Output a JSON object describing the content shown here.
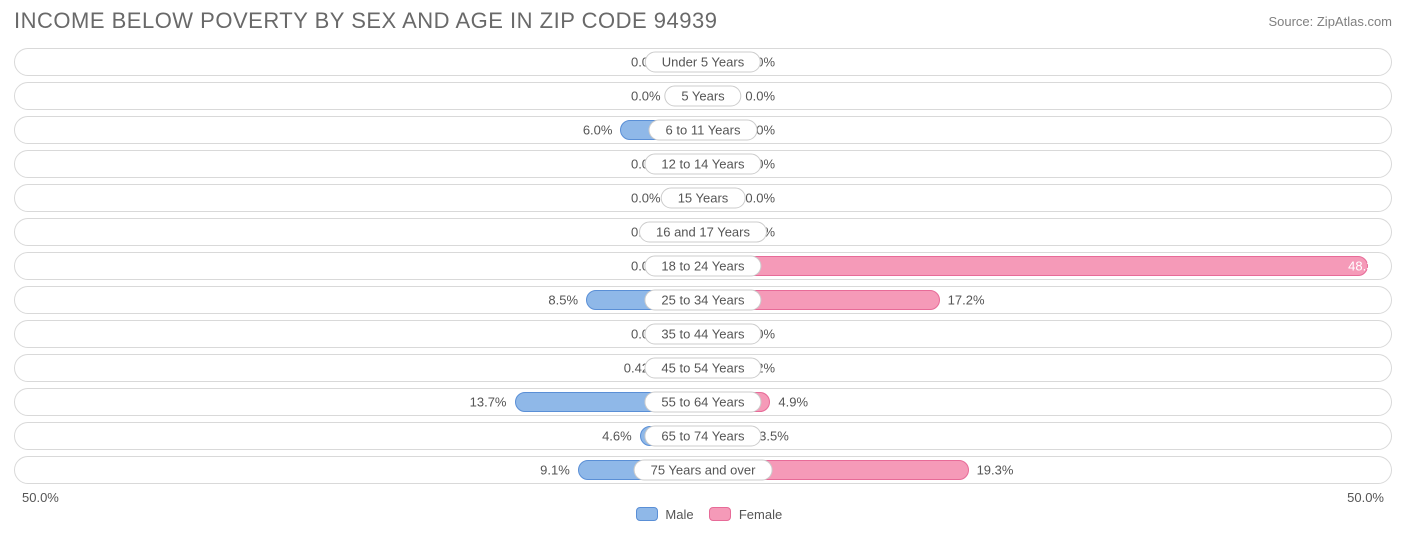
{
  "title": "INCOME BELOW POVERTY BY SEX AND AGE IN ZIP CODE 94939",
  "source": "Source: ZipAtlas.com",
  "axis_max": 50.0,
  "axis_left_label": "50.0%",
  "axis_right_label": "50.0%",
  "min_bar_pct": 5.0,
  "colors": {
    "male_fill": "#8fb8e8",
    "male_border": "#5a8fd6",
    "female_fill": "#f59ab8",
    "female_border": "#e76b98",
    "track_border": "#d9d9d9",
    "text": "#555555",
    "title": "#696969",
    "background": "#ffffff"
  },
  "legend": {
    "male": "Male",
    "female": "Female"
  },
  "rows": [
    {
      "label": "Under 5 Years",
      "male": 0.0,
      "female": 0.0
    },
    {
      "label": "5 Years",
      "male": 0.0,
      "female": 0.0
    },
    {
      "label": "6 to 11 Years",
      "male": 6.0,
      "female": 0.0
    },
    {
      "label": "12 to 14 Years",
      "male": 0.0,
      "female": 0.0
    },
    {
      "label": "15 Years",
      "male": 0.0,
      "female": 0.0
    },
    {
      "label": "16 and 17 Years",
      "male": 0.0,
      "female": 0.0
    },
    {
      "label": "18 to 24 Years",
      "male": 0.0,
      "female": 48.3
    },
    {
      "label": "25 to 34 Years",
      "male": 8.5,
      "female": 17.2
    },
    {
      "label": "35 to 44 Years",
      "male": 0.0,
      "female": 2.0
    },
    {
      "label": "45 to 54 Years",
      "male": 0.42,
      "female": 2.2
    },
    {
      "label": "55 to 64 Years",
      "male": 13.7,
      "female": 4.9
    },
    {
      "label": "65 to 74 Years",
      "male": 4.6,
      "female": 3.5
    },
    {
      "label": "75 Years and over",
      "male": 9.1,
      "female": 19.3
    }
  ]
}
